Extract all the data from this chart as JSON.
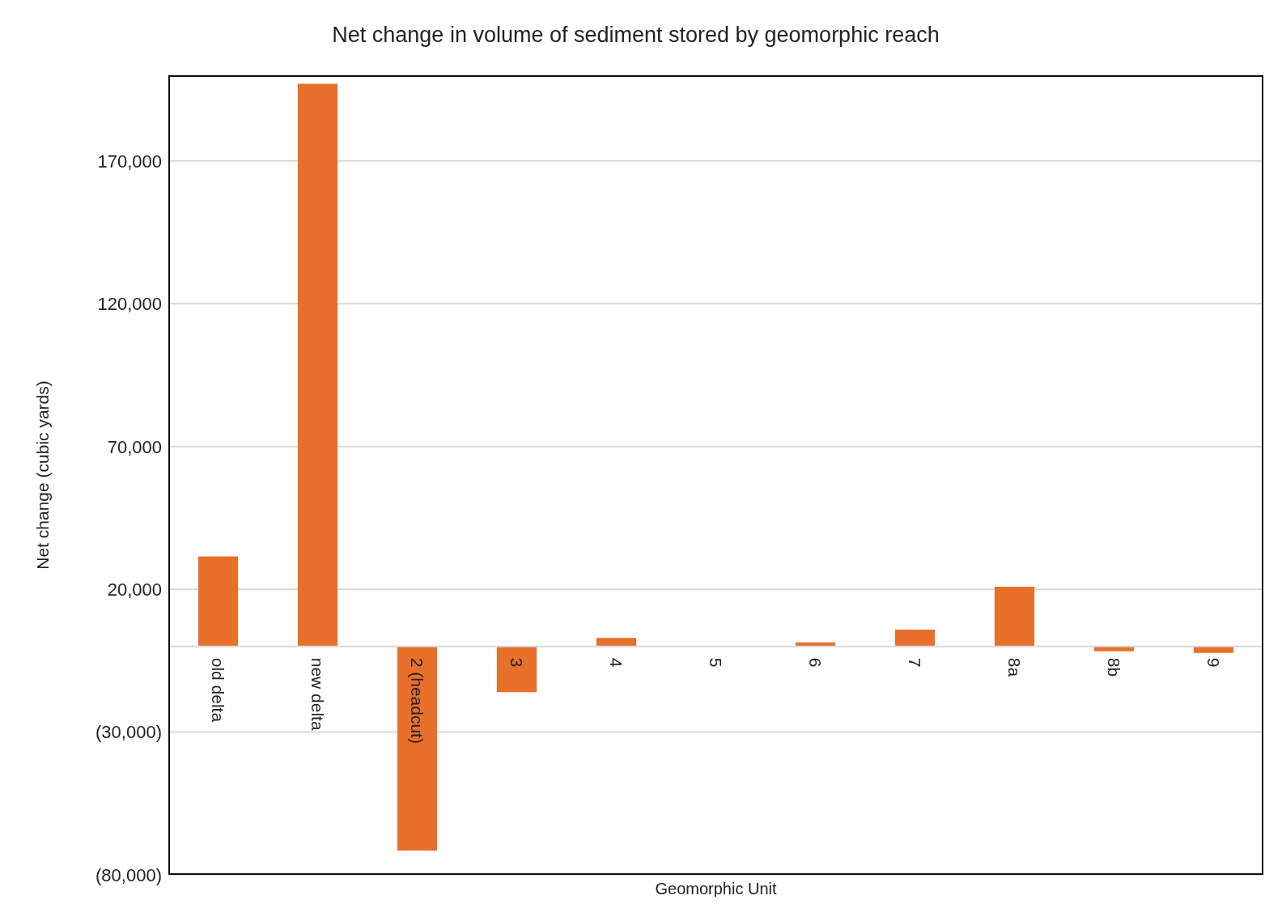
{
  "chart_data": {
    "type": "bar",
    "title": "Net change in volume of sediment stored by geomorphic reach",
    "xlabel": "Geomorphic Unit",
    "ylabel": "Net change (cubic yards)",
    "categories": [
      "old delta",
      "new delta",
      "2 (headcut)",
      "3",
      "4",
      "5",
      "6",
      "7",
      "8a",
      "8b",
      "9"
    ],
    "values": [
      31500,
      197000,
      -71500,
      -16000,
      3000,
      0,
      1400,
      5900,
      20900,
      -1700,
      -2300
    ],
    "color": "#e8702a",
    "ylim": [
      -80000,
      200000
    ],
    "yticks": [
      {
        "value": -80000,
        "label": "(80,000)"
      },
      {
        "value": -30000,
        "label": "(30,000)"
      },
      {
        "value": 20000,
        "label": "20,000"
      },
      {
        "value": 70000,
        "label": "70,000"
      },
      {
        "value": 120000,
        "label": "120,000"
      },
      {
        "value": 170000,
        "label": "170,000"
      }
    ],
    "grid": "y",
    "legend": false
  }
}
